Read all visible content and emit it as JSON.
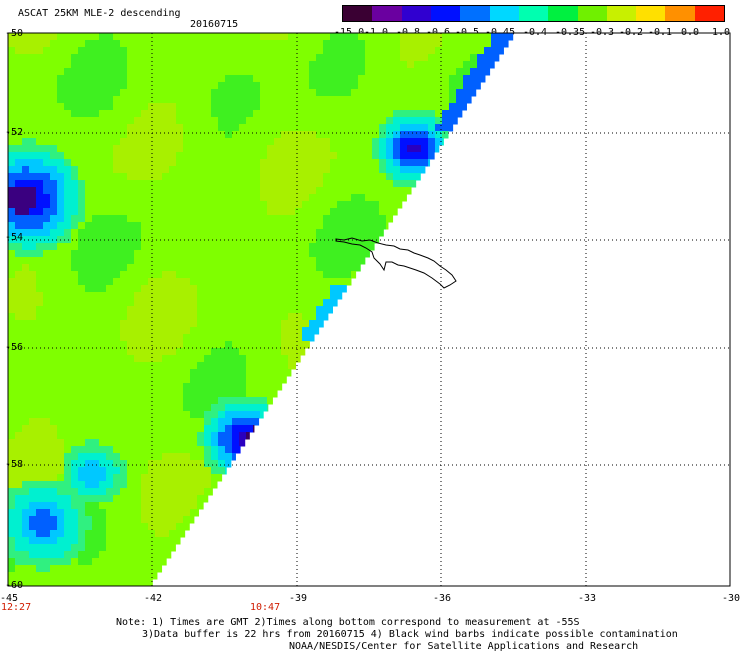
{
  "header": {
    "title": "ASCAT 25KM MLE-2 descending",
    "date": "20160715"
  },
  "colorbar": {
    "labels": [
      "-15.0",
      "-1.0",
      "-0.8",
      "-0.6",
      "-0.5",
      "-0.45",
      "-0.4",
      "-0.35",
      "-0.3",
      "-0.2",
      "-0.1",
      "0.0",
      "1.0"
    ],
    "colors": [
      "#3a0033",
      "#6a00a0",
      "#3000d0",
      "#0010ff",
      "#0070ff",
      "#00d8ff",
      "#00ffb0",
      "#00f040",
      "#70f000",
      "#c8f000",
      "#ffe000",
      "#ff9000",
      "#ff2000"
    ]
  },
  "axes": {
    "lat_labels": [
      "-50",
      "-52",
      "-54",
      "-56",
      "-58",
      "-60"
    ],
    "lon_labels": [
      "-45",
      "-42",
      "-39",
      "-36",
      "-33",
      "-30"
    ]
  },
  "times": [
    "12:27",
    "10:47"
  ],
  "notes": [
    "Note: 1) Times are GMT 2)Times along bottom correspond to measurement at -55S",
    "3)Data buffer is 22 hrs from 20160715 4) Black wind barbs indicate possible contamination",
    "NOAA/NESDIS/Center for Satellite Applications and Research"
  ]
}
